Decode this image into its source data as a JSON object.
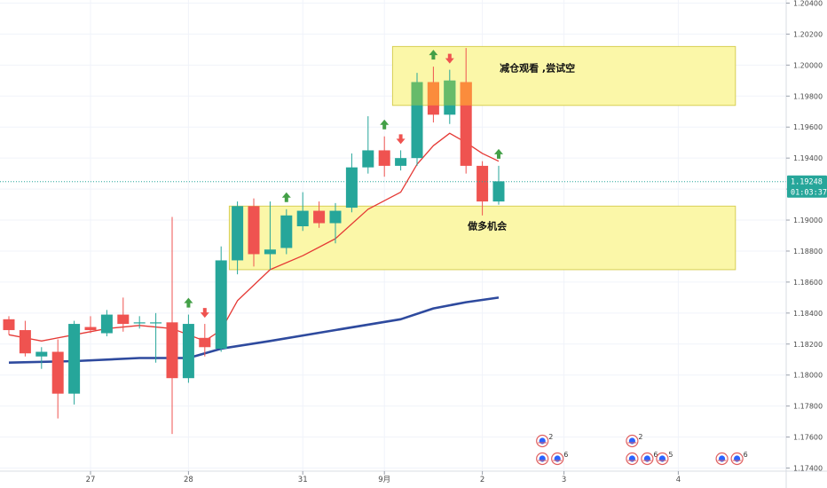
{
  "chart_data": {
    "type": "candlestick",
    "y_range": [
      1.1738,
      1.2042
    ],
    "y_ticks": [
      "1.17400",
      "1.17600",
      "1.17800",
      "1.18000",
      "1.18200",
      "1.18400",
      "1.18600",
      "1.18800",
      "1.19000",
      "1.19200",
      "1.19400",
      "1.19600",
      "1.19800",
      "1.20000",
      "1.20200",
      "1.20400"
    ],
    "x_ticks": [
      {
        "slot": 5,
        "label": "27"
      },
      {
        "slot": 11,
        "label": "28"
      },
      {
        "slot": 18,
        "label": "31"
      },
      {
        "slot": 23,
        "label": "9月"
      },
      {
        "slot": 29,
        "label": "2"
      },
      {
        "slot": 34,
        "label": "3"
      },
      {
        "slot": 41,
        "label": "4"
      }
    ],
    "candles": [
      {
        "o": 1.1836,
        "h": 1.1838,
        "l": 1.1826,
        "c": 1.1829
      },
      {
        "o": 1.1829,
        "h": 1.1835,
        "l": 1.1812,
        "c": 1.1814
      },
      {
        "o": 1.1812,
        "h": 1.1818,
        "l": 1.1804,
        "c": 1.1815
      },
      {
        "o": 1.1815,
        "h": 1.1823,
        "l": 1.1772,
        "c": 1.1788
      },
      {
        "o": 1.1788,
        "h": 1.1835,
        "l": 1.1781,
        "c": 1.1833
      },
      {
        "o": 1.1831,
        "h": 1.1838,
        "l": 1.1827,
        "c": 1.1829
      },
      {
        "o": 1.1827,
        "h": 1.1842,
        "l": 1.1825,
        "c": 1.1839
      },
      {
        "o": 1.1839,
        "h": 1.185,
        "l": 1.1828,
        "c": 1.1833
      },
      {
        "o": 1.1834,
        "h": 1.1838,
        "l": 1.183,
        "c": 1.1834
      },
      {
        "o": 1.1834,
        "h": 1.184,
        "l": 1.1808,
        "c": 1.1834
      },
      {
        "o": 1.1834,
        "h": 1.1902,
        "l": 1.1762,
        "c": 1.1798
      },
      {
        "o": 1.1798,
        "h": 1.1839,
        "l": 1.1795,
        "c": 1.1833
      },
      {
        "o": 1.1824,
        "h": 1.1833,
        "l": 1.1812,
        "c": 1.1818
      },
      {
        "o": 1.1817,
        "h": 1.1883,
        "l": 1.1815,
        "c": 1.1874
      },
      {
        "o": 1.1874,
        "h": 1.1912,
        "l": 1.1865,
        "c": 1.1909
      },
      {
        "o": 1.1909,
        "h": 1.1914,
        "l": 1.187,
        "c": 1.1878
      },
      {
        "o": 1.1878,
        "h": 1.1912,
        "l": 1.1868,
        "c": 1.1881
      },
      {
        "o": 1.1882,
        "h": 1.1907,
        "l": 1.1878,
        "c": 1.1903
      },
      {
        "o": 1.1896,
        "h": 1.1918,
        "l": 1.1893,
        "c": 1.1906
      },
      {
        "o": 1.1906,
        "h": 1.1912,
        "l": 1.1895,
        "c": 1.1898
      },
      {
        "o": 1.1898,
        "h": 1.1911,
        "l": 1.1885,
        "c": 1.1906
      },
      {
        "o": 1.1908,
        "h": 1.1943,
        "l": 1.1905,
        "c": 1.1934
      },
      {
        "o": 1.1934,
        "h": 1.1967,
        "l": 1.193,
        "c": 1.1945
      },
      {
        "o": 1.1945,
        "h": 1.1954,
        "l": 1.1928,
        "c": 1.1935
      },
      {
        "o": 1.1935,
        "h": 1.1945,
        "l": 1.1932,
        "c": 1.194
      },
      {
        "o": 1.194,
        "h": 1.1995,
        "l": 1.1935,
        "c": 1.1989
      },
      {
        "o": 1.1989,
        "h": 1.1999,
        "l": 1.1963,
        "c": 1.1968
      },
      {
        "o": 1.1968,
        "h": 1.1997,
        "l": 1.1962,
        "c": 1.199
      },
      {
        "o": 1.1989,
        "h": 1.2011,
        "l": 1.193,
        "c": 1.1935
      },
      {
        "o": 1.1935,
        "h": 1.1938,
        "l": 1.1903,
        "c": 1.1912
      },
      {
        "o": 1.1912,
        "h": 1.1935,
        "l": 1.191,
        "c": 1.1925
      }
    ],
    "ma_fast": [
      {
        "slot": 0,
        "y": 1.1826
      },
      {
        "slot": 2,
        "y": 1.1822
      },
      {
        "slot": 4,
        "y": 1.1826
      },
      {
        "slot": 6,
        "y": 1.183
      },
      {
        "slot": 8,
        "y": 1.1832
      },
      {
        "slot": 10,
        "y": 1.183
      },
      {
        "slot": 12,
        "y": 1.1822
      },
      {
        "slot": 13,
        "y": 1.1829
      },
      {
        "slot": 14,
        "y": 1.1848
      },
      {
        "slot": 16,
        "y": 1.1868
      },
      {
        "slot": 18,
        "y": 1.1877
      },
      {
        "slot": 20,
        "y": 1.1888
      },
      {
        "slot": 22,
        "y": 1.1907
      },
      {
        "slot": 24,
        "y": 1.1918
      },
      {
        "slot": 25,
        "y": 1.1936
      },
      {
        "slot": 26,
        "y": 1.1948
      },
      {
        "slot": 27,
        "y": 1.1956
      },
      {
        "slot": 28,
        "y": 1.195
      },
      {
        "slot": 29,
        "y": 1.1943
      },
      {
        "slot": 30,
        "y": 1.1938
      }
    ],
    "ma_slow": [
      {
        "slot": 0,
        "y": 1.1808
      },
      {
        "slot": 4,
        "y": 1.1809
      },
      {
        "slot": 8,
        "y": 1.1811
      },
      {
        "slot": 11,
        "y": 1.1811
      },
      {
        "slot": 13,
        "y": 1.1817
      },
      {
        "slot": 16,
        "y": 1.1822
      },
      {
        "slot": 20,
        "y": 1.1829
      },
      {
        "slot": 24,
        "y": 1.1836
      },
      {
        "slot": 26,
        "y": 1.1843
      },
      {
        "slot": 28,
        "y": 1.1847
      },
      {
        "slot": 30,
        "y": 1.185
      }
    ],
    "zones": [
      {
        "label": "减仓观看 ,尝试空",
        "y_top": 1.2012,
        "y_bottom": 1.1974,
        "slot_start": 23.5,
        "slot_end": 44.5
      },
      {
        "label": "做多机会",
        "y_top": 1.1909,
        "y_bottom": 1.1868,
        "slot_start": 13.5,
        "slot_end": 44.5
      }
    ],
    "arrows": [
      {
        "slot": 11,
        "dir": "up"
      },
      {
        "slot": 12,
        "dir": "down"
      },
      {
        "slot": 17,
        "dir": "up"
      },
      {
        "slot": 23,
        "dir": "up"
      },
      {
        "slot": 24,
        "dir": "down"
      },
      {
        "slot": 26,
        "dir": "up"
      },
      {
        "slot": 27,
        "dir": "down"
      },
      {
        "slot": 30,
        "dir": "up"
      }
    ],
    "events": [
      {
        "slot": 33,
        "badges": [
          {
            "row": 0,
            "count": "2"
          },
          {
            "row": 1,
            "count": ""
          },
          {
            "row": 1,
            "count": "6"
          }
        ]
      },
      {
        "slot": 38.5,
        "badges": [
          {
            "row": 1,
            "count": ""
          },
          {
            "row": 0,
            "count": "2"
          },
          {
            "row": 1,
            "count": "6"
          },
          {
            "row": 1,
            "count": "5"
          }
        ]
      },
      {
        "slot": 44,
        "badges": [
          {
            "row": 1,
            "count": ""
          },
          {
            "row": 1,
            "count": "6"
          }
        ]
      }
    ],
    "last_price": {
      "value": "1.19248",
      "countdown": "01:03:37"
    },
    "colors": {
      "up": "#26a69a",
      "down": "#ef5350",
      "ma_fast": "#e53935",
      "ma_slow": "#2e4a9e",
      "zone_fill": "#fbf7a8",
      "zone_border": "#d7cf55",
      "arrow_up": "#43a047",
      "arrow_down": "#ef5350",
      "last_price_tag": "#26a69a",
      "grid": "#f0f3fa",
      "badge_blue": "#2962ff"
    }
  }
}
